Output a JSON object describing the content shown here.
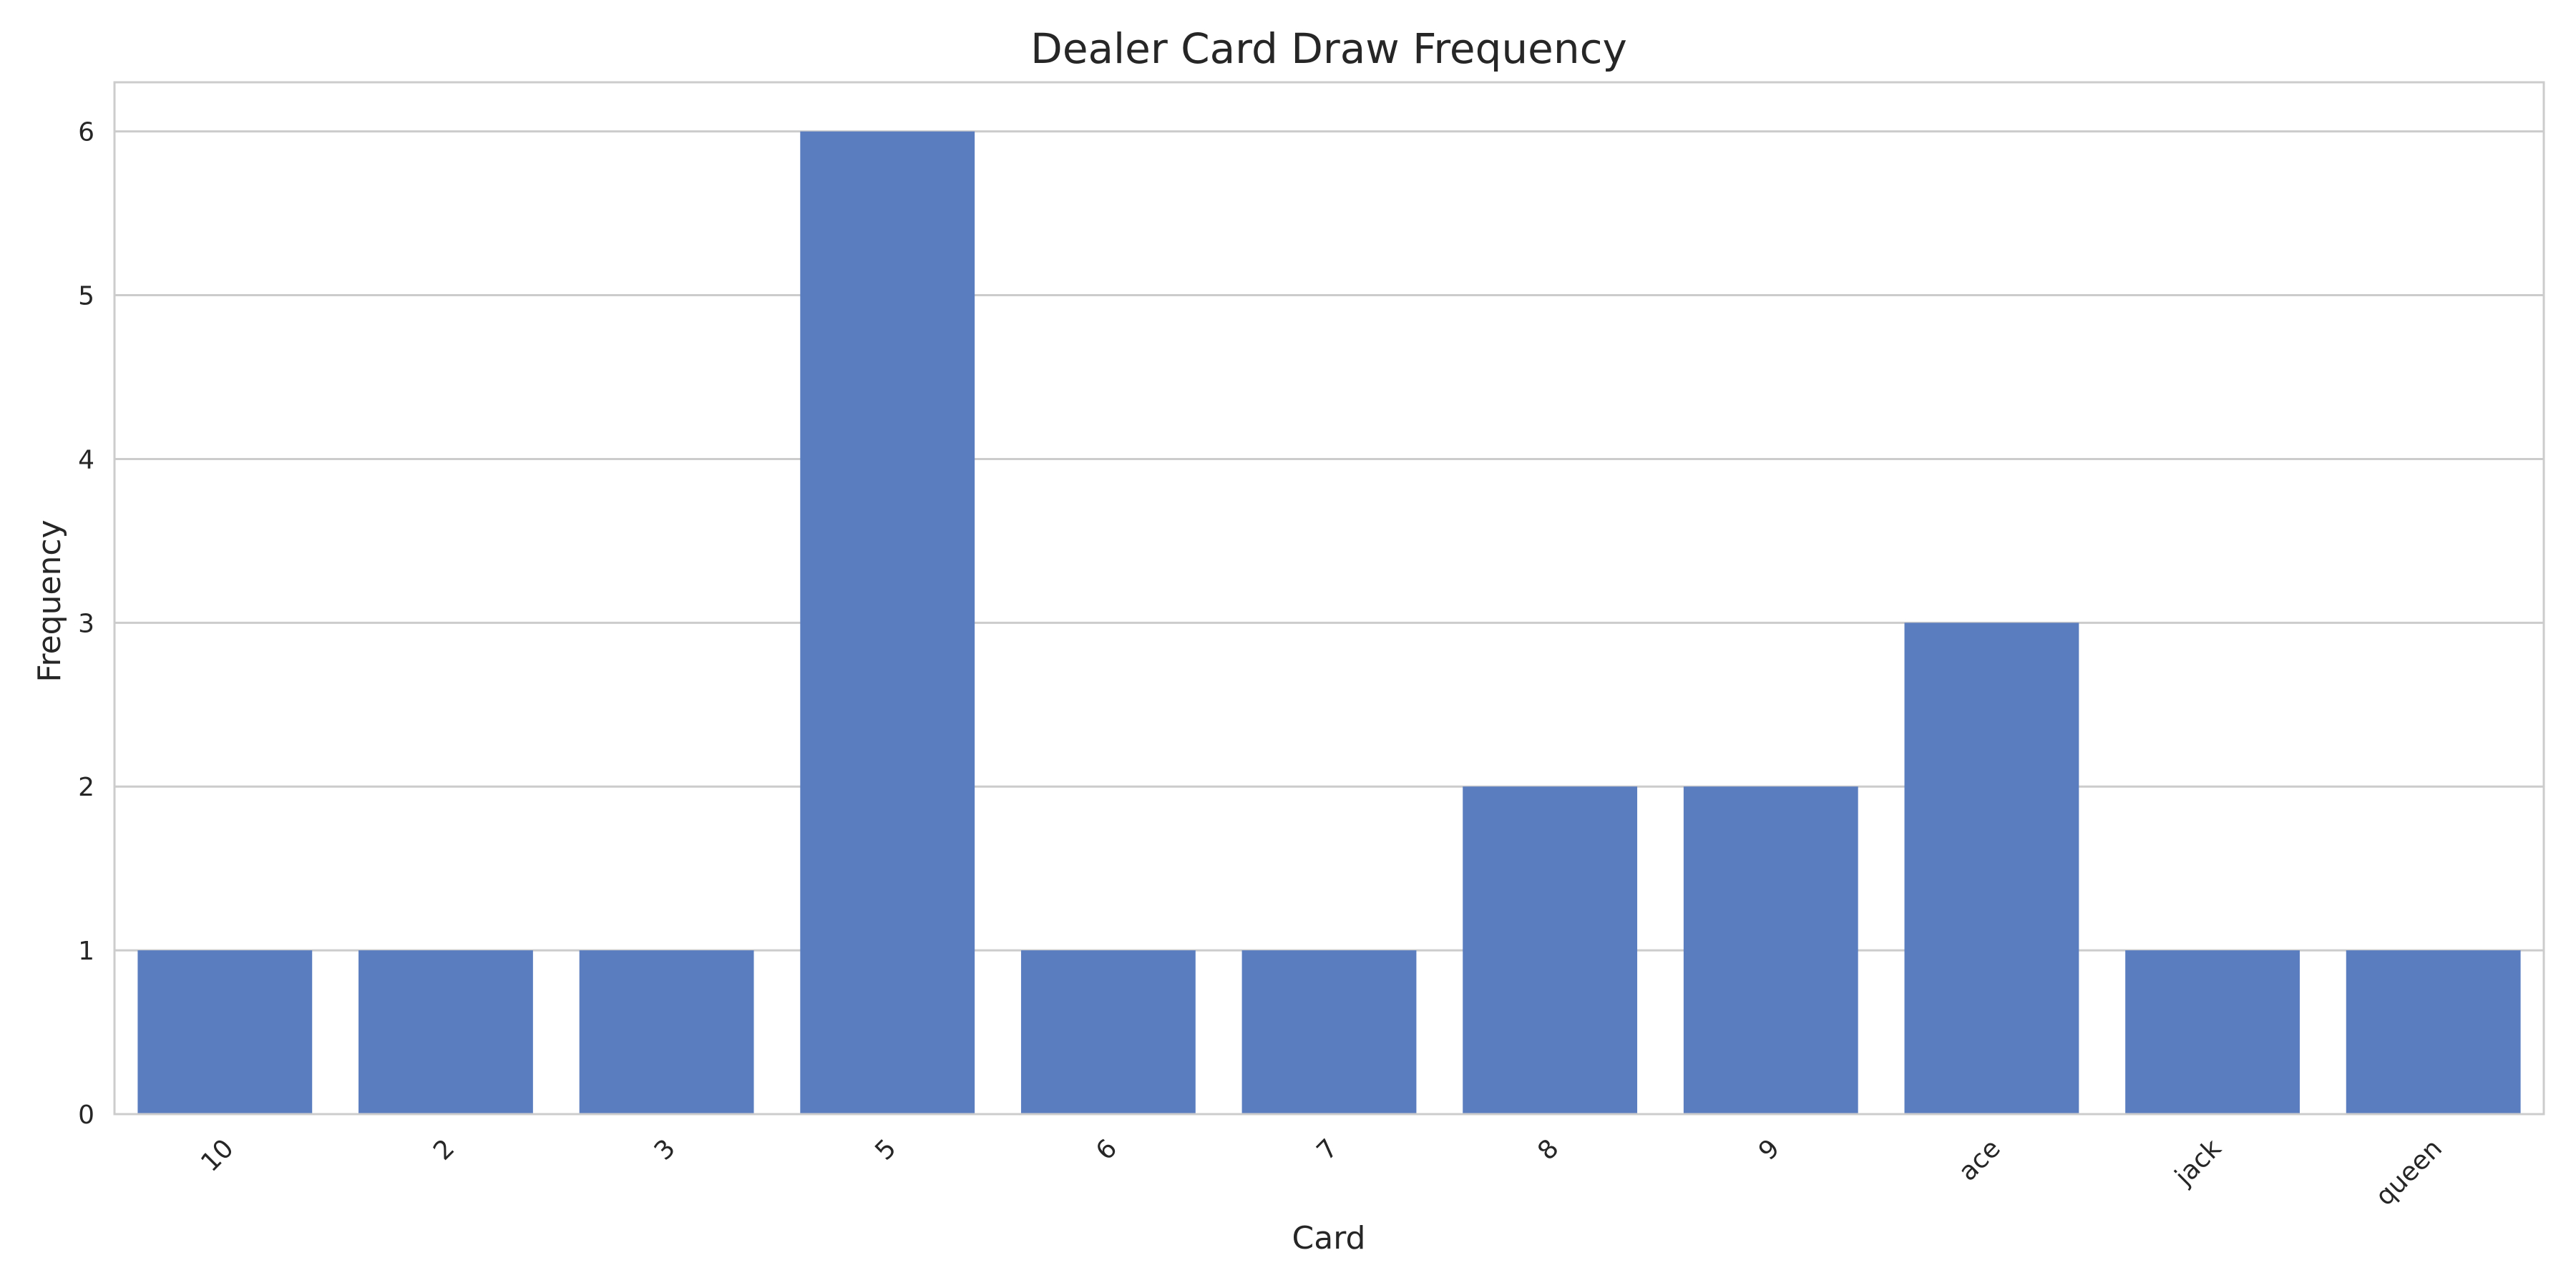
{
  "chart_data": {
    "type": "bar",
    "title": "Dealer Card Draw Frequency",
    "xlabel": "Card",
    "ylabel": "Frequency",
    "categories": [
      "10",
      "2",
      "3",
      "5",
      "6",
      "7",
      "8",
      "9",
      "ace",
      "jack",
      "queen"
    ],
    "values": [
      1,
      1,
      1,
      6,
      1,
      1,
      2,
      2,
      3,
      1,
      1
    ],
    "ylim": [
      0,
      6.3
    ],
    "yticks": [
      0,
      1,
      2,
      3,
      4,
      5,
      6
    ],
    "grid": "horizontal",
    "bar_color": "#5a7dc0",
    "x_tick_rotation_deg": 45
  }
}
